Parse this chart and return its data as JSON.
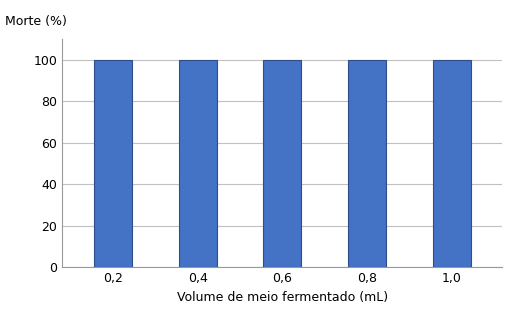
{
  "categories": [
    "0,2",
    "0,4",
    "0,6",
    "0,8",
    "1,0"
  ],
  "values": [
    100,
    100,
    100,
    100,
    100
  ],
  "bar_color": "#4472C4",
  "bar_edgecolor": "#2E4D8A",
  "ylabel": "Morte (%)",
  "xlabel": "Volume de meio fermentado (mL)",
  "ylim": [
    0,
    110
  ],
  "yticks": [
    0,
    20,
    40,
    60,
    80,
    100
  ],
  "background_color": "#FFFFFF",
  "ylabel_fontsize": 9,
  "xlabel_fontsize": 9,
  "tick_fontsize": 9,
  "bar_width": 0.45,
  "grid_color": "#C0C0C0",
  "grid_linewidth": 0.8
}
